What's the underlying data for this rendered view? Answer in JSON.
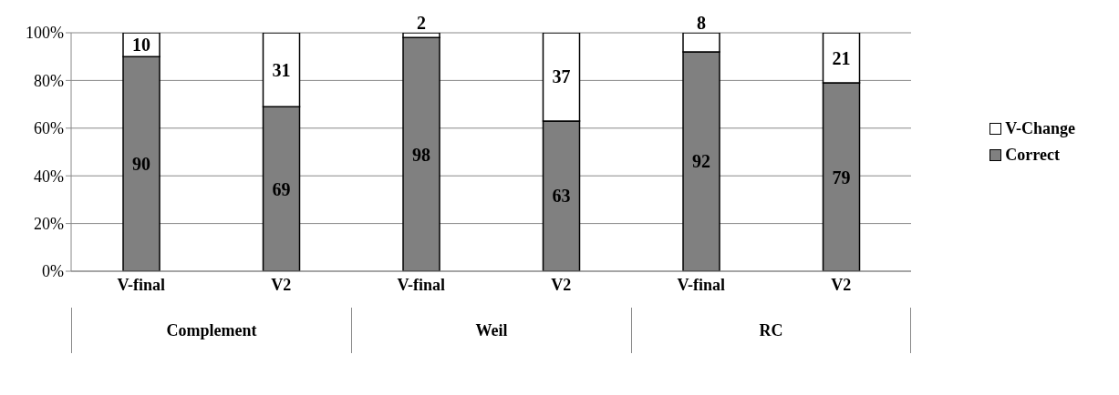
{
  "chart_data": {
    "type": "bar",
    "stacked": true,
    "categories": [
      "V-final",
      "V2",
      "V-final",
      "V2",
      "V-final",
      "V2"
    ],
    "series": [
      {
        "name": "Correct",
        "color": "#808080",
        "values": [
          90,
          69,
          98,
          63,
          92,
          79
        ]
      },
      {
        "name": "V-Change",
        "color": "#ffffff",
        "values": [
          10,
          31,
          2,
          37,
          8,
          21
        ]
      }
    ],
    "ylim": [
      0,
      100
    ],
    "yticks": [
      {
        "value": 0,
        "label": "0%"
      },
      {
        "value": 20,
        "label": "20%"
      },
      {
        "value": 40,
        "label": "40%"
      },
      {
        "value": 60,
        "label": "60%"
      },
      {
        "value": 80,
        "label": "80%"
      },
      {
        "value": 100,
        "label": "100%"
      }
    ],
    "grid": "y",
    "legend": "right",
    "data_labels": true,
    "annotations": [
      "Complement",
      "Weil",
      "RC"
    ]
  }
}
